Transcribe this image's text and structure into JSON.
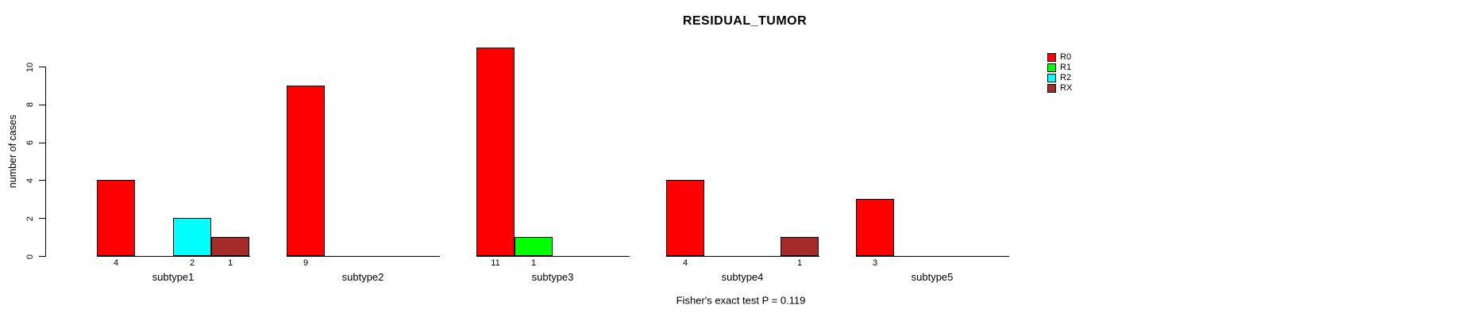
{
  "title": "RESIDUAL_TUMOR",
  "annotation": "Fisher's exact test P = 0.119",
  "colors": {
    "background": "#FFFFFF",
    "text": "#000000",
    "axis": "#000000",
    "bar_border": "#000000"
  },
  "chart_data": {
    "type": "bar",
    "title": "RESIDUAL_TUMOR",
    "xlabel": "",
    "ylabel": "number of cases",
    "categories": [
      "subtype1",
      "subtype2",
      "subtype3",
      "subtype4",
      "subtype5"
    ],
    "series": [
      {
        "name": "R0",
        "color": "#FF0000",
        "values": [
          4,
          9,
          11,
          4,
          3
        ]
      },
      {
        "name": "R1",
        "color": "#00FF00",
        "values": [
          0,
          0,
          1,
          0,
          0
        ]
      },
      {
        "name": "R2",
        "color": "#00FFFF",
        "values": [
          2,
          0,
          0,
          0,
          0
        ]
      },
      {
        "name": "RX",
        "color": "#A52A2A",
        "values": [
          1,
          0,
          0,
          1,
          0
        ]
      }
    ],
    "bar_count_labels_shown_for_nonzero_only": true,
    "yticks": [
      0,
      2,
      4,
      6,
      8,
      10
    ],
    "ylim": [
      0,
      11
    ],
    "grid": false,
    "legend_position": "top-right",
    "legend_entries": [
      "R0",
      "R1",
      "R2",
      "RX"
    ],
    "annotation": "Fisher's exact test P = 0.119"
  }
}
